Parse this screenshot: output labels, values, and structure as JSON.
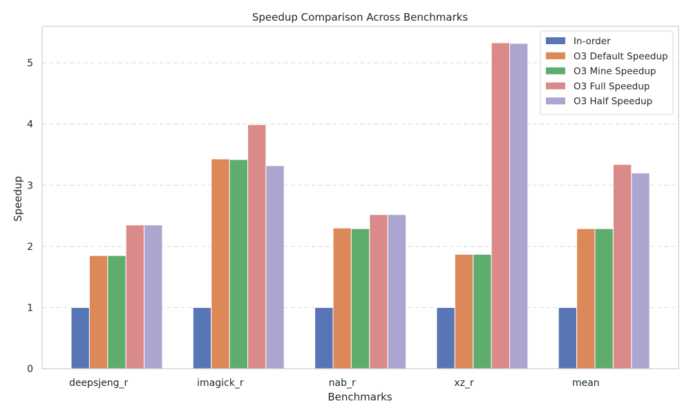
{
  "chart_data": {
    "type": "bar",
    "title": "Speedup Comparison Across Benchmarks",
    "xlabel": "Benchmarks",
    "ylabel": "Speedup",
    "categories": [
      "deepsjeng_r",
      "imagick_r",
      "nab_r",
      "xz_r",
      "mean"
    ],
    "ylim": [
      0,
      5.6
    ],
    "yticks": [
      0,
      1,
      2,
      3,
      4,
      5
    ],
    "grid": "horizontal-dashed",
    "legend_position": "top-right",
    "series": [
      {
        "name": "In-order",
        "color": "#5875b6",
        "values": [
          1.0,
          1.0,
          1.0,
          1.0,
          1.0
        ]
      },
      {
        "name": "O3 Default Speedup",
        "color": "#dd8858",
        "values": [
          1.85,
          3.43,
          2.3,
          1.87,
          2.29
        ]
      },
      {
        "name": "O3 Mine Speedup",
        "color": "#5fad6d",
        "values": [
          1.85,
          3.42,
          2.29,
          1.87,
          2.29
        ]
      },
      {
        "name": "O3 Full Speedup",
        "color": "#d98a89",
        "values": [
          2.35,
          3.99,
          2.52,
          5.33,
          3.34
        ]
      },
      {
        "name": "O3 Half Speedup",
        "color": "#ada5d0",
        "values": [
          2.35,
          3.32,
          2.52,
          5.32,
          3.2
        ]
      }
    ]
  }
}
